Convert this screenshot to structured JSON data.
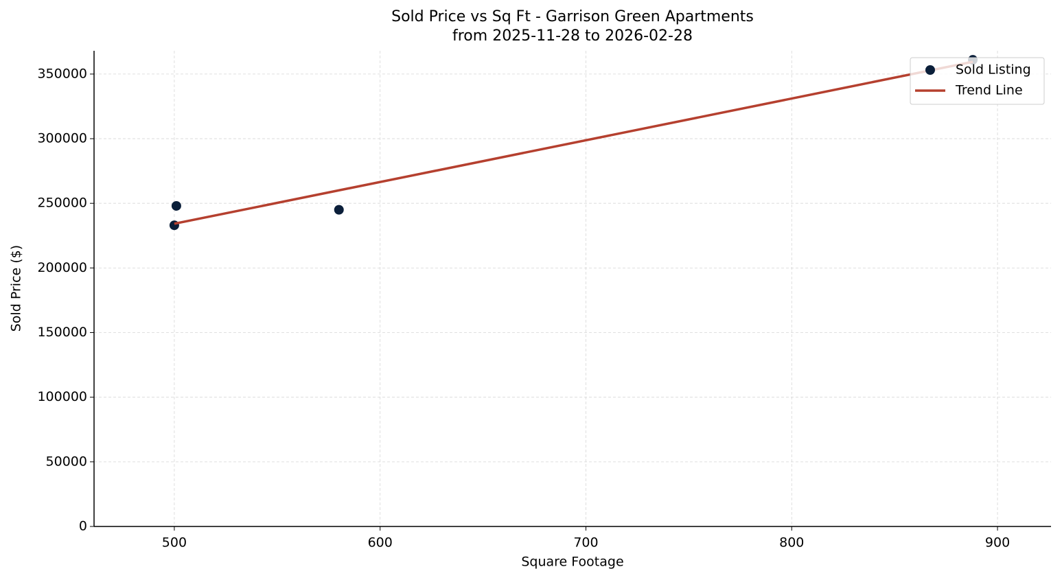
{
  "chart_data": {
    "type": "scatter",
    "title": "Sold Price vs Sq Ft - Garrison Green Apartments",
    "subtitle": "from 2025-11-28 to 2026-02-28",
    "x_label": "Square Footage",
    "y_label": "Sold Price ($)",
    "xlim": [
      461,
      926
    ],
    "xticks": [
      500,
      600,
      700,
      800,
      900
    ],
    "ylim": [
      0,
      368000
    ],
    "yticks": [
      0,
      50000,
      100000,
      150000,
      200000,
      250000,
      300000,
      350000
    ],
    "grid": true,
    "legend": "upper right",
    "series": [
      {
        "name": "Sold Listing",
        "type": "scatter",
        "color": "#0b1f3a",
        "x": [
          500,
          501,
          580,
          888
        ],
        "values": [
          233000,
          248000,
          245000,
          361000
        ]
      },
      {
        "name": "Trend Line",
        "type": "line",
        "color": "#b5402f",
        "x": [
          500,
          888
        ],
        "values": [
          234200,
          359500
        ]
      }
    ]
  }
}
